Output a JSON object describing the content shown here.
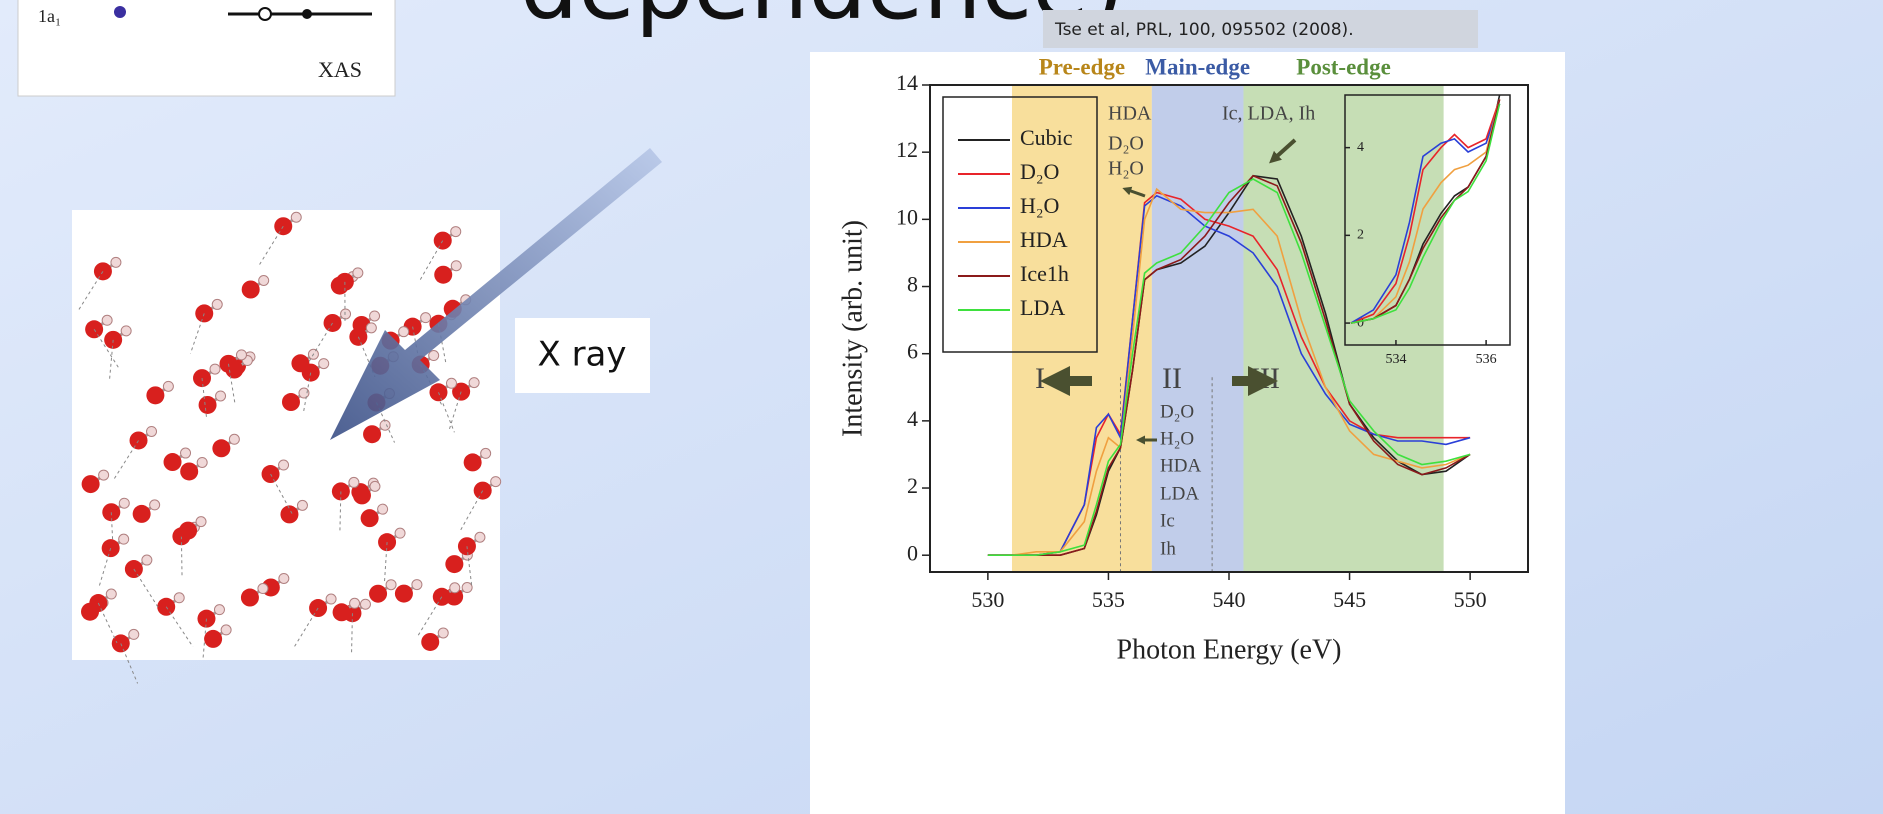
{
  "slide": {
    "title": "dependence)",
    "citation": "Tse et al, PRL, 100, 095502 (2008).",
    "xray_label": "X ray",
    "diagram": {
      "orbital": "1a₁",
      "caption": "XAS"
    }
  },
  "chart_data": [
    {
      "type": "line",
      "xlabel": "Photon Energy (eV)",
      "ylabel": "Intensity (arb. unit)",
      "xlim": [
        527.6,
        552.4
      ],
      "ylim": [
        -0.5,
        14
      ],
      "xticks": [
        530,
        535,
        540,
        545,
        550
      ],
      "yticks": [
        0,
        2,
        4,
        6,
        8,
        10,
        12,
        14
      ],
      "legend": "upper left",
      "regions": [
        {
          "label": "Pre-edge",
          "range": [
            531,
            536.8
          ],
          "color": "#f7d98b",
          "label_color": "#b8861a"
        },
        {
          "label": "Main-edge",
          "range": [
            536.8,
            540.6
          ],
          "color": "#b6c4e6",
          "label_color": "#3b5ba5"
        },
        {
          "label": "Post-edge",
          "range": [
            540.6,
            548.9
          ],
          "color": "#bcd8a8",
          "label_color": "#5a8f3c"
        }
      ],
      "vlines": [
        535.5,
        539.3
      ],
      "annotations": [
        "HDA",
        "D₂O",
        "H₂O",
        "Ic, LDA, Ih",
        "I",
        "II",
        "III",
        "D₂O",
        "H₂O",
        "HDA",
        "LDA",
        "Ic",
        "Ih"
      ],
      "x": [
        530,
        531,
        532,
        533,
        534,
        534.5,
        535,
        535.5,
        536,
        536.5,
        537,
        538,
        539,
        540,
        541,
        542,
        543,
        544,
        545,
        546,
        547,
        548,
        549,
        550
      ],
      "series": [
        {
          "name": "Cubic",
          "color": "#222222",
          "values": [
            0,
            0,
            0,
            0,
            0.2,
            1.2,
            2.5,
            3.2,
            5.5,
            8.2,
            8.5,
            8.7,
            9.2,
            10.2,
            11.3,
            11.2,
            9.5,
            7.2,
            4.5,
            3.5,
            2.8,
            2.4,
            2.5,
            3.0
          ]
        },
        {
          "name": "D₂O",
          "color": "#e8242a",
          "values": [
            0,
            0,
            0,
            0.1,
            1.5,
            3.5,
            4.2,
            3.6,
            7,
            10.5,
            10.8,
            10.6,
            10,
            9.8,
            9.5,
            8.5,
            6.5,
            5,
            4,
            3.6,
            3.5,
            3.5,
            3.5,
            3.5
          ]
        },
        {
          "name": "H₂O",
          "color": "#2a3fd8",
          "values": [
            0,
            0,
            0,
            0.1,
            1.5,
            3.8,
            4.2,
            3.5,
            7,
            10.4,
            10.7,
            10.4,
            9.8,
            9.5,
            9,
            8,
            6,
            4.8,
            3.9,
            3.6,
            3.4,
            3.4,
            3.3,
            3.5
          ]
        },
        {
          "name": "HDA",
          "color": "#f0a040",
          "values": [
            0,
            0,
            0.1,
            0.1,
            1,
            2.5,
            3.5,
            3.2,
            6.5,
            10,
            10.9,
            10.3,
            10.2,
            10.2,
            10.3,
            9.5,
            7,
            5,
            3.7,
            3.0,
            2.8,
            2.6,
            2.7,
            3.0
          ]
        },
        {
          "name": "Ice1h",
          "color": "#8b1a1a",
          "values": [
            0,
            0,
            0,
            0,
            0.2,
            1.3,
            2.6,
            3.2,
            5.5,
            8.2,
            8.5,
            8.8,
            9.5,
            10.5,
            11.3,
            11,
            9.3,
            7,
            4.5,
            3.4,
            2.7,
            2.4,
            2.6,
            3.0
          ]
        },
        {
          "name": "LDA",
          "color": "#3ee03e",
          "values": [
            0,
            0,
            0,
            0.1,
            0.3,
            1.5,
            2.8,
            3.3,
            6,
            8.4,
            8.7,
            9,
            9.8,
            10.8,
            11.2,
            10.8,
            9,
            6.8,
            4.6,
            3.7,
            3.0,
            2.7,
            2.8,
            3.0
          ]
        }
      ]
    },
    {
      "type": "line",
      "xlim": [
        532.87,
        536.53
      ],
      "ylim": [
        -0.5,
        5.2
      ],
      "xticks": [
        534,
        536
      ],
      "yticks": [
        0,
        2,
        4
      ],
      "x": [
        533,
        533.5,
        534,
        534.3,
        534.6,
        535,
        535.3,
        535.6,
        536,
        536.3
      ],
      "series": [
        {
          "color": "#222222",
          "values": [
            0,
            0.1,
            0.4,
            1,
            1.8,
            2.5,
            2.9,
            3.1,
            3.8,
            5.2
          ]
        },
        {
          "color": "#e8242a",
          "values": [
            0,
            0.2,
            0.9,
            2.0,
            3.5,
            4.0,
            4.3,
            4.0,
            4.2,
            5.1
          ]
        },
        {
          "color": "#2a3fd8",
          "values": [
            0,
            0.3,
            1.1,
            2.3,
            3.8,
            4.1,
            4.2,
            3.9,
            4.1,
            5.0
          ]
        },
        {
          "color": "#f0a040",
          "values": [
            0,
            0.1,
            0.6,
            1.4,
            2.6,
            3.2,
            3.5,
            3.6,
            3.9,
            5.1
          ]
        },
        {
          "color": "#8b1a1a",
          "values": [
            0,
            0.1,
            0.4,
            1.0,
            1.7,
            2.4,
            2.8,
            3.1,
            3.8,
            5.1
          ]
        },
        {
          "color": "#3ee03e",
          "values": [
            0,
            0.1,
            0.3,
            0.8,
            1.5,
            2.3,
            2.8,
            3.0,
            3.7,
            5.0
          ]
        }
      ]
    }
  ]
}
